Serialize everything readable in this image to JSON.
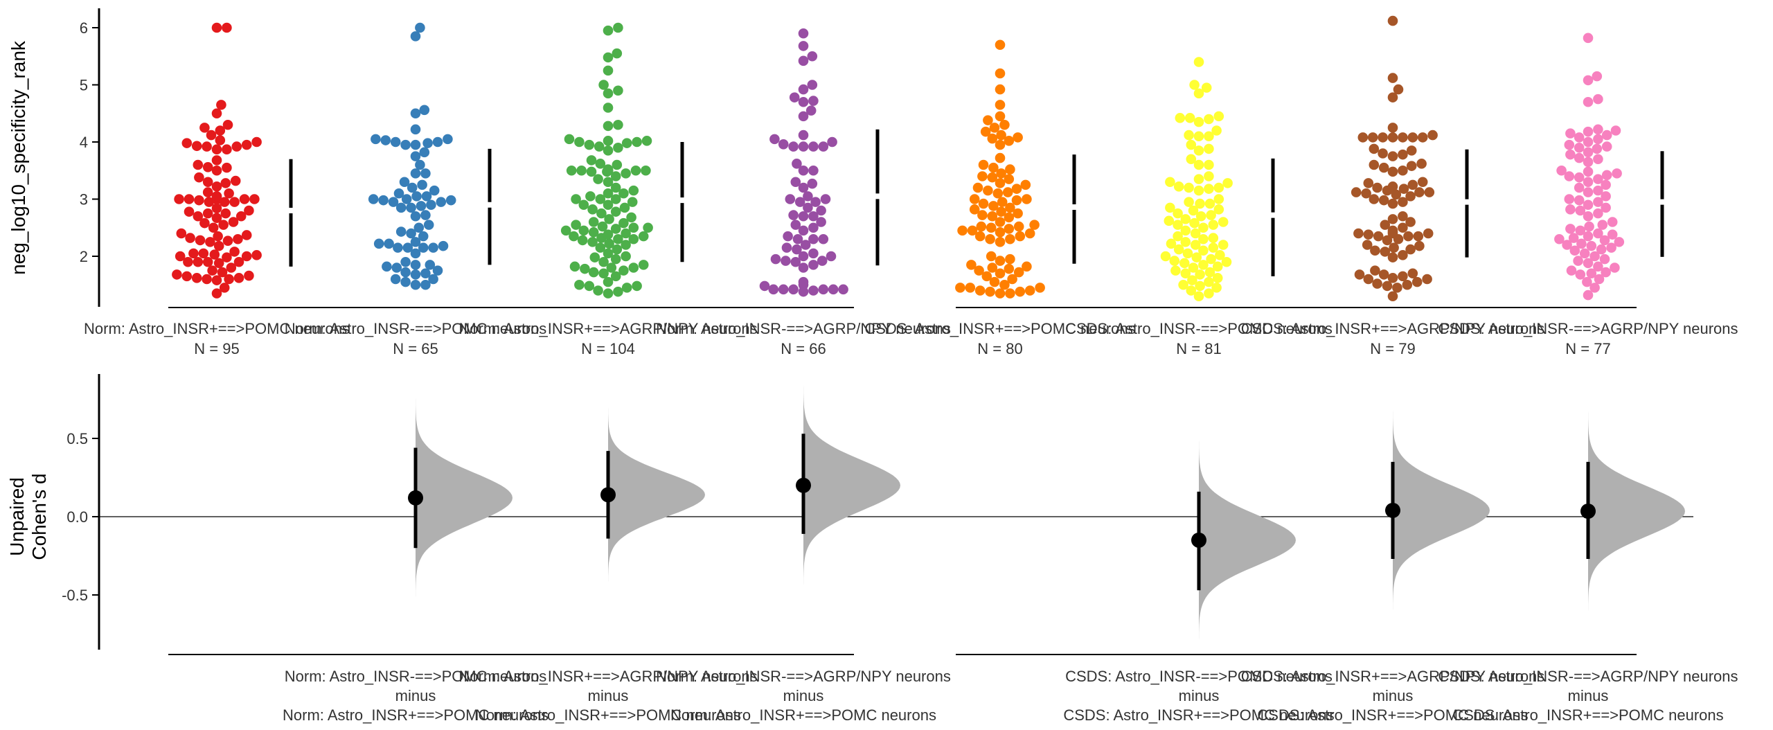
{
  "chart_data": [
    {
      "type": "scatter",
      "subtype": "swarm",
      "panel": "top",
      "ylabel": "neg_log10_specificity_rank",
      "ylim": [
        1.2,
        6.4
      ],
      "yticks": [
        2,
        3,
        4,
        5,
        6
      ],
      "grid": false,
      "categories": [
        "Norm: Astro_INSR+==>POMC neurons",
        "Norm: Astro_INSR-==>POMC neurons",
        "Norm: Astro_INSR+==>AGRP/NPY neurons",
        "Norm: Astro_INSR-==>AGRP/NPY neurons",
        "CSDS: Astro_INSR+==>POMC neurons",
        "CSDS: Astro_INSR-==>POMC neurons",
        "CSDS: Astro_INSR+==>AGRP/NPY neurons",
        "CSDS: Astro_INSR-==>AGRP/NPY neurons"
      ],
      "n_labels": [
        "N = 95",
        "N = 65",
        "N = 104",
        "N = 66",
        "N = 80",
        "N = 81",
        "N = 79",
        "N = 77"
      ],
      "colors": [
        "#e41a1c",
        "#377eb8",
        "#4daf4a",
        "#984ea3",
        "#ff7f00",
        "#ffff33",
        "#a65628",
        "#f781bf"
      ],
      "summary": [
        {
          "median": 2.8,
          "q_low": 1.82,
          "q_high": 3.7
        },
        {
          "median": 2.9,
          "q_low": 1.85,
          "q_high": 3.88
        },
        {
          "median": 2.98,
          "q_low": 1.9,
          "q_high": 4.0
        },
        {
          "median": 3.05,
          "q_low": 1.84,
          "q_high": 4.22
        },
        {
          "median": 2.86,
          "q_low": 1.87,
          "q_high": 3.78
        },
        {
          "median": 2.72,
          "q_low": 1.65,
          "q_high": 3.71
        },
        {
          "median": 2.95,
          "q_low": 1.98,
          "q_high": 3.87
        },
        {
          "median": 2.95,
          "q_low": 1.99,
          "q_high": 3.84
        }
      ],
      "series": [
        {
          "name": "Norm: Astro_INSR+==>POMC neurons",
          "n": 95,
          "values": [
            6.0,
            6.0,
            4.65,
            4.5,
            4.3,
            4.25,
            4.2,
            4.12,
            4.03,
            4.0,
            3.98,
            3.95,
            3.93,
            3.92,
            3.92,
            3.87,
            3.87,
            3.68,
            3.6,
            3.56,
            3.55,
            3.5,
            3.38,
            3.32,
            3.3,
            3.28,
            3.22,
            3.12,
            3.1,
            3.05,
            3.05,
            3.0,
            3.0,
            3.0,
            3.0,
            3.0,
            3.0,
            3.0,
            3.0,
            3.0,
            3.0,
            3.0,
            3.0,
            3.0,
            2.98,
            2.95,
            2.95,
            2.95,
            2.84,
            2.8,
            2.78,
            2.75,
            2.75,
            2.7,
            2.7,
            2.67,
            2.6,
            2.58,
            2.55,
            2.5,
            2.4,
            2.37,
            2.35,
            2.32,
            2.3,
            2.28,
            2.27,
            2.25,
            2.18,
            2.08,
            2.05,
            2.05,
            2.03,
            2.02,
            2.0,
            2.0,
            1.98,
            1.9,
            1.9,
            1.9,
            1.9,
            1.88,
            1.8,
            1.75,
            1.72,
            1.68,
            1.66,
            1.65,
            1.62,
            1.62,
            1.6,
            1.6,
            1.58,
            1.45,
            1.35
          ]
        },
        {
          "name": "Norm: Astro_INSR-==>POMC neurons",
          "n": 65,
          "values": [
            6.0,
            5.85,
            4.56,
            4.5,
            4.22,
            4.05,
            4.05,
            4.03,
            4.0,
            4.0,
            3.98,
            3.95,
            3.95,
            3.82,
            3.75,
            3.6,
            3.45,
            3.45,
            3.3,
            3.25,
            3.2,
            3.15,
            3.1,
            3.05,
            3.05,
            3.0,
            3.0,
            2.98,
            2.98,
            2.95,
            2.95,
            2.9,
            2.88,
            2.85,
            2.85,
            2.72,
            2.7,
            2.55,
            2.5,
            2.43,
            2.4,
            2.35,
            2.25,
            2.22,
            2.22,
            2.18,
            2.15,
            2.15,
            2.15,
            2.15,
            2.05,
            1.9,
            1.85,
            1.85,
            1.82,
            1.8,
            1.75,
            1.72,
            1.7,
            1.68,
            1.6,
            1.6,
            1.55,
            1.5,
            1.5
          ]
        },
        {
          "name": "Norm: Astro_INSR+==>AGRP/NPY neurons",
          "n": 104,
          "values": [
            6.0,
            5.95,
            5.55,
            5.48,
            5.25,
            5.0,
            4.9,
            4.85,
            4.6,
            4.3,
            4.28,
            4.05,
            4.02,
            4.02,
            4.0,
            4.0,
            3.98,
            3.95,
            3.92,
            3.9,
            3.85,
            3.68,
            3.62,
            3.6,
            3.52,
            3.5,
            3.5,
            3.5,
            3.5,
            3.5,
            3.5,
            3.5,
            3.5,
            3.5,
            3.5,
            3.5,
            3.48,
            3.48,
            3.45,
            3.4,
            3.35,
            3.3,
            3.2,
            3.15,
            3.1,
            3.1,
            3.05,
            3.0,
            3.0,
            3.0,
            2.95,
            2.9,
            2.9,
            2.85,
            2.82,
            2.78,
            2.75,
            2.68,
            2.65,
            2.6,
            2.58,
            2.55,
            2.52,
            2.5,
            2.5,
            2.48,
            2.45,
            2.45,
            2.42,
            2.4,
            2.38,
            2.35,
            2.35,
            2.32,
            2.3,
            2.3,
            2.28,
            2.25,
            2.22,
            2.2,
            2.15,
            2.12,
            2.05,
            2.0,
            1.98,
            1.95,
            1.9,
            1.85,
            1.82,
            1.8,
            1.8,
            1.78,
            1.75,
            1.72,
            1.7,
            1.65,
            1.55,
            1.5,
            1.48,
            1.48,
            1.45,
            1.4,
            1.38,
            1.35
          ]
        },
        {
          "name": "Norm: Astro_INSR-==>AGRP/NPY neurons",
          "n": 66,
          "values": [
            5.9,
            5.68,
            5.5,
            5.42,
            5.0,
            4.92,
            4.78,
            4.72,
            4.7,
            4.55,
            4.45,
            4.12,
            4.05,
            4.0,
            3.96,
            3.92,
            3.92,
            3.92,
            3.92,
            3.62,
            3.5,
            3.5,
            3.3,
            3.27,
            3.2,
            3.05,
            3.0,
            3.0,
            2.95,
            2.95,
            2.85,
            2.8,
            2.72,
            2.7,
            2.7,
            2.6,
            2.55,
            2.5,
            2.45,
            2.35,
            2.3,
            2.3,
            2.3,
            2.2,
            2.15,
            2.12,
            2.05,
            2.0,
            2.0,
            1.95,
            1.92,
            1.92,
            1.9,
            1.85,
            1.8,
            1.55,
            1.5,
            1.48,
            1.42,
            1.42,
            1.42,
            1.42,
            1.42,
            1.42,
            1.4,
            1.38
          ]
        },
        {
          "name": "CSDS: Astro_INSR+==>POMC neurons",
          "n": 80,
          "values": [
            5.7,
            5.2,
            4.92,
            4.65,
            4.45,
            4.38,
            4.3,
            4.25,
            4.18,
            4.12,
            4.08,
            4.06,
            4.02,
            3.95,
            3.72,
            3.6,
            3.55,
            3.52,
            3.45,
            3.4,
            3.38,
            3.35,
            3.28,
            3.25,
            3.2,
            3.18,
            3.15,
            3.12,
            3.1,
            3.0,
            3.0,
            2.98,
            2.95,
            2.92,
            2.88,
            2.85,
            2.82,
            2.78,
            2.75,
            2.72,
            2.7,
            2.68,
            2.6,
            2.55,
            2.52,
            2.52,
            2.5,
            2.48,
            2.45,
            2.45,
            2.42,
            2.4,
            2.35,
            2.35,
            2.3,
            2.3,
            2.25,
            2.0,
            1.95,
            1.92,
            1.85,
            1.82,
            1.8,
            1.78,
            1.75,
            1.72,
            1.7,
            1.65,
            1.6,
            1.55,
            1.5,
            1.45,
            1.45,
            1.45,
            1.4,
            1.4,
            1.38,
            1.38,
            1.35,
            1.35
          ]
        },
        {
          "name": "CSDS: Astro_INSR-==>POMC neurons",
          "n": 81,
          "values": [
            5.4,
            5.0,
            4.95,
            4.85,
            4.45,
            4.42,
            4.42,
            4.4,
            4.35,
            4.2,
            4.12,
            4.1,
            4.1,
            3.95,
            3.88,
            3.85,
            3.7,
            3.6,
            3.6,
            3.4,
            3.35,
            3.3,
            3.28,
            3.22,
            3.2,
            3.2,
            3.18,
            3.15,
            3.0,
            2.95,
            2.92,
            2.92,
            2.85,
            2.82,
            2.8,
            2.75,
            2.72,
            2.7,
            2.65,
            2.62,
            2.6,
            2.58,
            2.55,
            2.55,
            2.5,
            2.45,
            2.4,
            2.35,
            2.32,
            2.3,
            2.25,
            2.22,
            2.2,
            2.2,
            2.15,
            2.12,
            2.1,
            2.05,
            2.02,
            2.0,
            1.98,
            1.95,
            1.92,
            1.9,
            1.88,
            1.85,
            1.82,
            1.8,
            1.75,
            1.72,
            1.7,
            1.68,
            1.62,
            1.58,
            1.55,
            1.5,
            1.48,
            1.45,
            1.4,
            1.35,
            1.3
          ]
        },
        {
          "name": "CSDS: Astro_INSR+==>AGRP/NPY neurons",
          "n": 79,
          "values": [
            6.12,
            5.12,
            4.92,
            4.78,
            4.25,
            4.12,
            4.08,
            4.08,
            4.08,
            4.08,
            4.08,
            4.08,
            4.08,
            3.88,
            3.85,
            3.8,
            3.78,
            3.75,
            3.62,
            3.6,
            3.58,
            3.55,
            3.5,
            3.48,
            3.3,
            3.28,
            3.25,
            3.22,
            3.2,
            3.18,
            3.15,
            3.12,
            3.12,
            3.12,
            3.1,
            3.08,
            3.05,
            3.0,
            2.98,
            2.95,
            2.92,
            2.7,
            2.65,
            2.6,
            2.55,
            2.5,
            2.45,
            2.42,
            2.4,
            2.4,
            2.4,
            2.38,
            2.35,
            2.35,
            2.35,
            2.3,
            2.28,
            2.2,
            2.18,
            2.15,
            2.12,
            2.1,
            2.08,
            2.02,
            1.98,
            1.75,
            1.7,
            1.68,
            1.68,
            1.65,
            1.62,
            1.6,
            1.6,
            1.55,
            1.52,
            1.5,
            1.48,
            1.45,
            1.3
          ]
        },
        {
          "name": "CSDS: Astro_INSR-==>AGRP/NPY neurons",
          "n": 77,
          "values": [
            5.82,
            5.15,
            5.08,
            4.75,
            4.7,
            4.22,
            4.2,
            4.18,
            4.15,
            4.12,
            4.08,
            4.05,
            4.0,
            3.95,
            3.92,
            3.9,
            3.88,
            3.82,
            3.78,
            3.72,
            3.7,
            3.65,
            3.5,
            3.48,
            3.45,
            3.42,
            3.4,
            3.38,
            3.35,
            3.3,
            3.25,
            3.2,
            3.15,
            3.12,
            3.05,
            3.0,
            2.98,
            2.95,
            2.9,
            2.85,
            2.82,
            2.8,
            2.75,
            2.7,
            2.6,
            2.55,
            2.52,
            2.48,
            2.45,
            2.4,
            2.38,
            2.35,
            2.32,
            2.3,
            2.28,
            2.25,
            2.22,
            2.2,
            2.18,
            2.15,
            2.12,
            2.1,
            2.05,
            2.0,
            1.95,
            1.92,
            1.88,
            1.82,
            1.8,
            1.75,
            1.72,
            1.7,
            1.68,
            1.6,
            1.55,
            1.45,
            1.32
          ]
        }
      ]
    },
    {
      "type": "scatter",
      "subtype": "effect-size-with-bootstrap-distribution",
      "panel": "bottom",
      "ylabel": "Unpaired\nCohen's d",
      "ylabel_lines": [
        "Unpaired",
        "Cohen's d"
      ],
      "ylim": [
        -0.85,
        0.9
      ],
      "yticks": [
        -0.5,
        0.0,
        0.5
      ],
      "ytick_labels": [
        "-0.5",
        "0.0",
        "0.5"
      ],
      "reference_line": 0.0,
      "grid": false,
      "comparisons": [
        {
          "category_index": 1,
          "test": "Norm: Astro_INSR-==>POMC neurons",
          "minus_word": "minus",
          "control": "Norm: Astro_INSR+==>POMC neurons",
          "effect": 0.12,
          "ci_low": -0.2,
          "ci_high": 0.44,
          "dist_sd": 0.16
        },
        {
          "category_index": 2,
          "test": "Norm: Astro_INSR+==>AGRP/NPY neurons",
          "minus_word": "minus",
          "control": "Norm: Astro_INSR+==>POMC neurons",
          "effect": 0.14,
          "ci_low": -0.14,
          "ci_high": 0.42,
          "dist_sd": 0.14
        },
        {
          "category_index": 3,
          "test": "Norm: Astro_INSR-==>AGRP/NPY neurons",
          "minus_word": "minus",
          "control": "Norm: Astro_INSR+==>POMC neurons",
          "effect": 0.2,
          "ci_low": -0.11,
          "ci_high": 0.53,
          "dist_sd": 0.16
        },
        {
          "category_index": 5,
          "test": "CSDS: Astro_INSR-==>POMC neurons",
          "minus_word": "minus",
          "control": "CSDS: Astro_INSR+==>POMC neurons",
          "effect": -0.15,
          "ci_low": -0.47,
          "ci_high": 0.16,
          "dist_sd": 0.16
        },
        {
          "category_index": 6,
          "test": "CSDS: Astro_INSR+==>AGRP/NPY neurons",
          "minus_word": "minus",
          "control": "CSDS: Astro_INSR+==>POMC neurons",
          "effect": 0.04,
          "ci_low": -0.27,
          "ci_high": 0.35,
          "dist_sd": 0.16
        },
        {
          "category_index": 7,
          "test": "CSDS: Astro_INSR-==>AGRP/NPY neurons",
          "minus_word": "minus",
          "control": "CSDS: Astro_INSR+==>POMC neurons",
          "effect": 0.035,
          "ci_low": -0.27,
          "ci_high": 0.35,
          "dist_sd": 0.16
        }
      ],
      "distribution_color": "#b0b0b0",
      "marker_color": "#000000"
    }
  ]
}
